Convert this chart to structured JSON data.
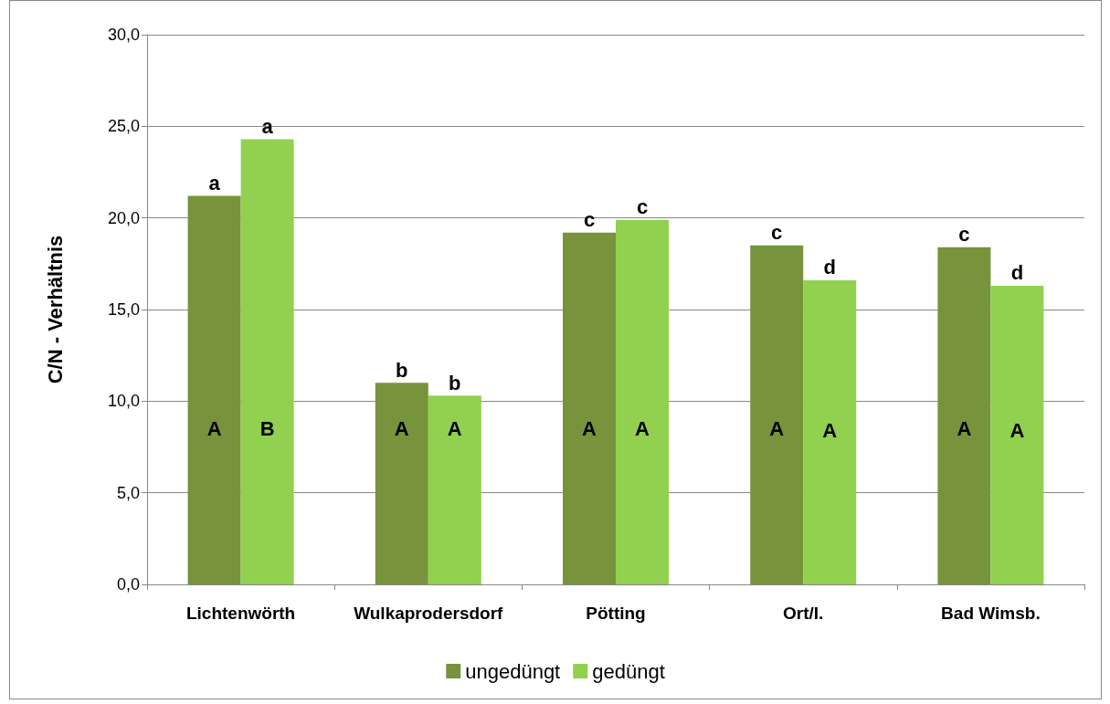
{
  "chart_data": {
    "type": "bar",
    "ylabel": "C/N - Verhältnis",
    "categories": [
      "Lichtenwörth",
      "Wulkaprodersdorf",
      "Pötting",
      "Ort/I.",
      "Bad Wimsb."
    ],
    "series": [
      {
        "name": "ungedüngt",
        "color": "#77933c",
        "values": [
          21.2,
          11.0,
          19.2,
          18.5,
          18.4
        ],
        "value_labels": [
          "a",
          "b",
          "c",
          "c",
          "c"
        ]
      },
      {
        "name": "gedüngt",
        "color": "#92d050",
        "values": [
          24.3,
          10.3,
          19.9,
          16.6,
          16.3
        ],
        "value_labels": [
          "a",
          "b",
          "c",
          "d",
          "d"
        ]
      }
    ],
    "annotations": [
      {
        "text": "A",
        "x": "Lichtenwörth",
        "y": 8.5
      },
      {
        "text": "B",
        "x": "Lichtenwörth",
        "y": 8.5
      },
      {
        "text": "A",
        "x": "Wulkaprodersdorf",
        "y": 8.5
      },
      {
        "text": "A",
        "x": "Wulkaprodersdorf",
        "y": 8.5
      },
      {
        "text": "A",
        "x": "Pötting",
        "y": 8.5
      },
      {
        "text": "A",
        "x": "Pötting",
        "y": 8.5
      },
      {
        "text": "A",
        "x": "Ort/I.",
        "y": 8.5
      },
      {
        "text": "A",
        "x": "Ort/I.",
        "y": 8.4
      },
      {
        "text": "A",
        "x": "Bad Wimsb.",
        "y": 8.5
      },
      {
        "text": "A",
        "x": "Bad Wimsb.",
        "y": 8.4
      }
    ],
    "ylim": [
      0,
      30
    ],
    "yticks": [
      {
        "value": 0,
        "label": "0,0"
      },
      {
        "value": 5,
        "label": "5,0"
      },
      {
        "value": 10,
        "label": "10,0"
      },
      {
        "value": 15,
        "label": "15,0"
      },
      {
        "value": 20,
        "label": "20,0"
      },
      {
        "value": 25,
        "label": "25,0"
      },
      {
        "value": 30,
        "label": "30,0"
      }
    ],
    "grid": "y",
    "legend": "bottom"
  }
}
